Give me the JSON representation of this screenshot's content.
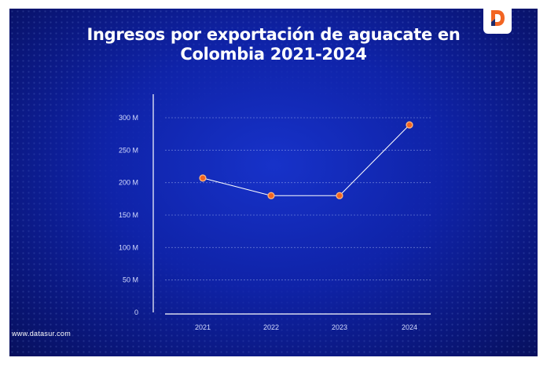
{
  "header": {
    "title_line1": "Ingresos por exportación de aguacate en",
    "title_line2": "Colombia 2021-2024"
  },
  "footer": {
    "website": "www.datasur.com"
  },
  "brand": {
    "logo_icon": "datasur-logo-icon",
    "accent": "#f26522",
    "background": "#0f23a8"
  },
  "chart_data": {
    "type": "line",
    "title": "Ingresos por exportación de aguacate en Colombia 2021-2024",
    "xlabel": "",
    "ylabel": "",
    "categories": [
      "2021",
      "2022",
      "2023",
      "2024"
    ],
    "series": [
      {
        "values": [
          207,
          180,
          180,
          289
        ]
      }
    ],
    "y_ticks": [
      0,
      50,
      100,
      150,
      200,
      250,
      300
    ],
    "y_tick_labels": [
      "0",
      "50 M",
      "100 M",
      "150 M",
      "200 M",
      "250 M",
      "300 M"
    ],
    "ylim": [
      0,
      300
    ],
    "unit": "M",
    "grid": true,
    "line_color": "#ffffff",
    "marker_color": "#f26522"
  }
}
